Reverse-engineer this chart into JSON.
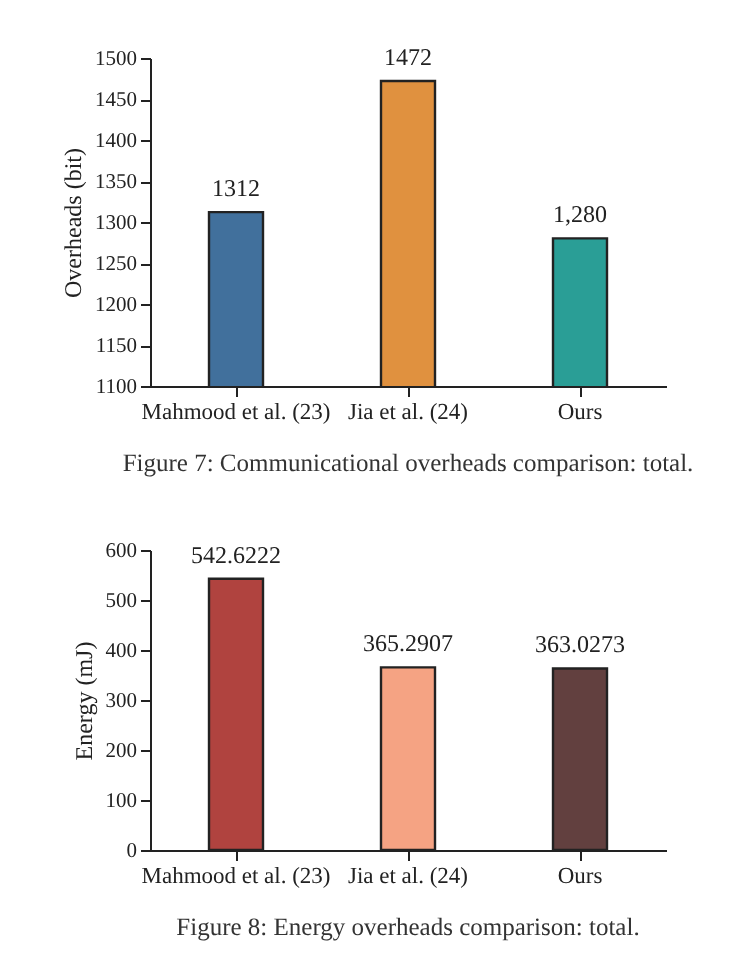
{
  "chart_data": [
    {
      "type": "bar",
      "ylabel": "Overheads (bit)",
      "categories": [
        "Mahmood et al. (23)",
        "Jia et al. (24)",
        "Ours"
      ],
      "values": [
        1312,
        1472,
        1280
      ],
      "colors": [
        "#41709c",
        "#e0913f",
        "#2a9e96"
      ],
      "value_labels": [
        "1312",
        "1472",
        "1,280"
      ],
      "ylim": [
        1100,
        1500
      ],
      "yticks": [
        1100,
        1150,
        1200,
        1250,
        1300,
        1350,
        1400,
        1450,
        1500
      ],
      "grid": false,
      "annotations": [
        "Figure 7: Communicational overheads comparison: total."
      ]
    },
    {
      "type": "bar",
      "ylabel": "Energy (mJ)",
      "categories": [
        "Mahmood et al. (23)",
        "Jia et al. (24)",
        "Ours"
      ],
      "values": [
        542.6222,
        365.2907,
        363.0273
      ],
      "colors": [
        "#b0433f",
        "#f5a383",
        "#62403f"
      ],
      "data_labels": true,
      "ylim": [
        0,
        600
      ],
      "yticks": [
        0,
        100,
        200,
        300,
        400,
        500,
        600
      ],
      "grid": false,
      "annotations": [
        "Figure 8: Energy overheads comparison: total."
      ]
    }
  ]
}
